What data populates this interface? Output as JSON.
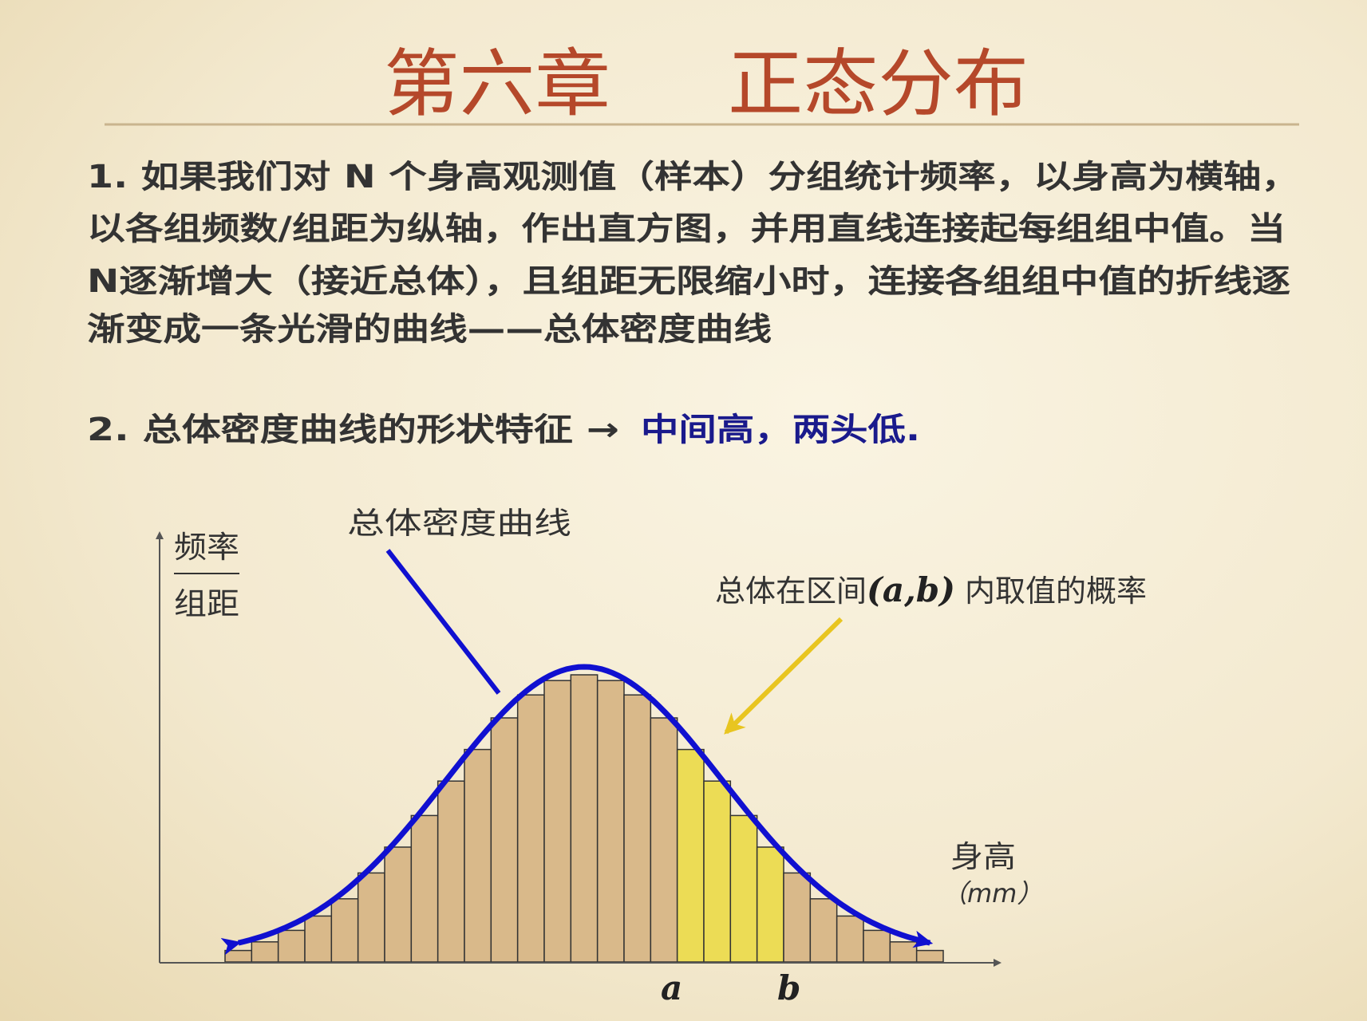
{
  "title": {
    "chapter": "第六章",
    "topic": "正态分布",
    "color": "#b5482a"
  },
  "paragraph1": {
    "lines": [
      "1. 如果我们对 N 个身高观测值（样本）分组统计频率，以身高为横轴，",
      "以各组频数/组距为纵轴，作出直方图，并用直线连接起每组组中值。当",
      "N逐渐增大（接近总体），且组距无限缩小时，连接各组组中值的折线逐",
      "渐变成一条光滑的曲线——总体密度曲线"
    ]
  },
  "paragraph2": {
    "prefix": "2. 总体密度曲线的形状特征 →",
    "highlight": "中间高，两头低.",
    "highlight_color": "#1a1a8c"
  },
  "chart_data": {
    "type": "bar",
    "description_labels": {
      "curve_label": "总体密度曲线",
      "interval_label_prefix": "总体在区间",
      "interval_label_math": "(a,b)",
      "interval_label_suffix": " 内取值的概率"
    },
    "ylabel_numerator": "频率",
    "ylabel_denominator": "组距",
    "xlabel": "身高",
    "xunit": "（mm）",
    "interval_marks": [
      "a",
      "b"
    ],
    "values": [
      0.04,
      0.07,
      0.11,
      0.16,
      0.22,
      0.31,
      0.4,
      0.51,
      0.63,
      0.74,
      0.85,
      0.93,
      0.98,
      1.0,
      0.98,
      0.93,
      0.85,
      0.74,
      0.63,
      0.51,
      0.4,
      0.31,
      0.22,
      0.16,
      0.11,
      0.07,
      0.04
    ],
    "highlighted_bars": [
      17,
      18,
      19,
      20
    ],
    "colors": {
      "bar": "#d9b98a",
      "highlight": "#ecdc55",
      "curve": "#1010d0",
      "arrow_yellow": "#e8c520"
    }
  }
}
